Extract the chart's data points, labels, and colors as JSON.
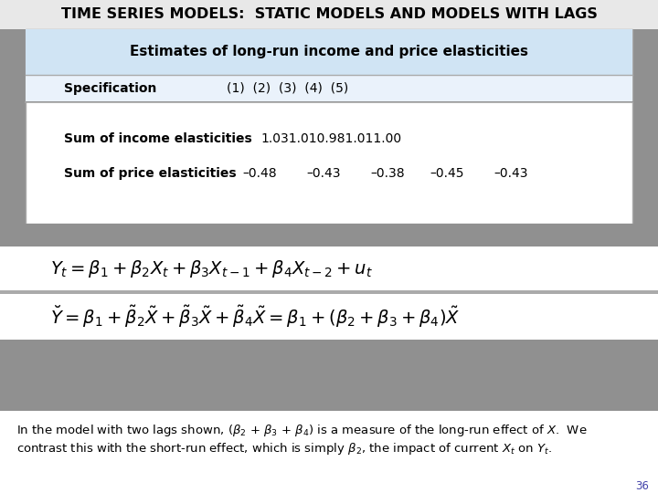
{
  "title": "TIME SERIES MODELS:  STATIC MODELS AND MODELS WITH LAGS",
  "table_header_text": "Estimates of long-run income and price elasticities",
  "spec_label": "Specification",
  "spec_numbers": "(1)  (2)  (3)  (4)  (5)",
  "income_label": "Sum of income elasticities",
  "income_values": "1.031.010.981.011.00",
  "price_label": "Sum of price elasticities",
  "price_values_list": [
    "–0.48",
    "–0.43",
    "–0.38",
    "–0.45",
    "–0.43"
  ],
  "page_num": "36",
  "title_bg": "#e8e8e8",
  "slide_bg": "#909090",
  "table_outer_bg": "#909090",
  "table_box_bg": "#ffffff",
  "table_header_bg": "#d0e4f4",
  "spec_row_bg": "#eaf2fb",
  "eq1_bg": "#ffffff",
  "eq2_bg": "#ffffff",
  "foot_bg": "#ffffff",
  "gray_sep": "#909090",
  "border_color": "#aaaaaa"
}
